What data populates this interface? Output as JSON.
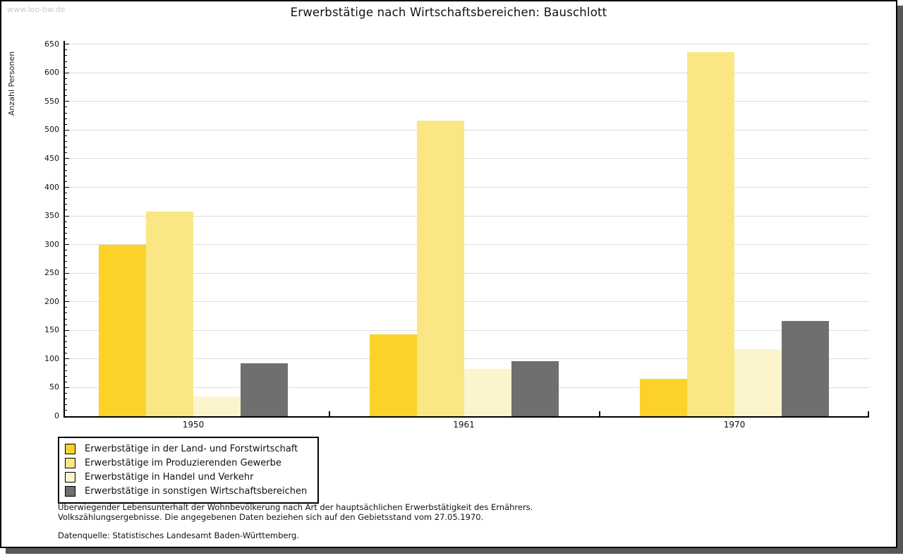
{
  "watermark": "www.leo-bw.de",
  "title": "Erwerbstätige nach Wirtschaftsbereichen: Bauschlott",
  "chart_data": {
    "type": "bar",
    "title": "Erwerbstätige nach Wirtschaftsbereichen: Bauschlott",
    "xlabel": "",
    "ylabel": "Anzahl Personen",
    "categories": [
      "1950",
      "1961",
      "1970"
    ],
    "series": [
      {
        "name": "Erwerbstätige in der Land- und Forstwirtschaft",
        "color": "#FCD228",
        "values": [
          300,
          143,
          65
        ]
      },
      {
        "name": "Erwerbstätige im Produzierenden Gewerbe",
        "color": "#FAE784",
        "values": [
          357,
          516,
          636
        ]
      },
      {
        "name": "Erwerbstätige in Handel und Verkehr",
        "color": "#FCF4CC",
        "values": [
          35,
          83,
          117
        ]
      },
      {
        "name": "Erwerbstätige in sonstigen Wirtschaftsbereichen",
        "color": "#6F6F6F",
        "values": [
          93,
          96,
          166
        ]
      }
    ],
    "ylim": [
      0,
      650
    ],
    "y_major_step": 50,
    "y_minor_step": 10,
    "grid": true,
    "gridline_color": "#dcdcdc",
    "legend_position": "bottom-left"
  },
  "footnotes": {
    "line1": "Überwiegender Lebensunterhalt der Wohnbevölkerung nach Art der hauptsächlichen Erwerbstätigkeit des Ernährers.",
    "line2": "Volkszählungsergebnisse. Die angegebenen Daten beziehen sich auf den Gebietsstand vom 27.05.1970.",
    "source": "Datenquelle: Statistisches Landesamt Baden-Württemberg."
  }
}
